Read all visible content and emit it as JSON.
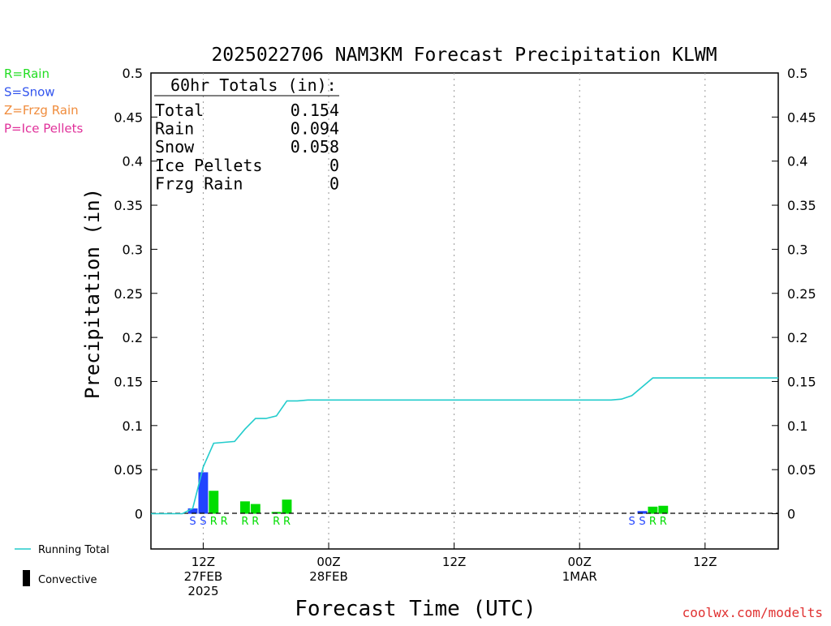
{
  "title": "2025022706 NAM3KM Forecast Precipitation KLWM",
  "legend_types": [
    {
      "label": "R=Rain",
      "color": "#22dd22"
    },
    {
      "label": "S=Snow",
      "color": "#3355ee"
    },
    {
      "label": "Z=Frzg Rain",
      "color": "#f08c3c"
    },
    {
      "label": "P=Ice Pellets",
      "color": "#e0309a"
    }
  ],
  "legend_lines": {
    "running_total": "Running Total",
    "convective": "Convective"
  },
  "totals": {
    "header": "60hr Totals (in):",
    "rows": [
      {
        "label": "Total",
        "value": "0.154"
      },
      {
        "label": "Rain",
        "value": "0.094"
      },
      {
        "label": "Snow",
        "value": "0.058"
      },
      {
        "label": "Ice Pellets",
        "value": "0"
      },
      {
        "label": "Frzg Rain",
        "value": "0"
      }
    ]
  },
  "footer": "coolwx.com/modelts",
  "chart_data": {
    "type": "bar",
    "xlabel": "Forecast Time (UTC)",
    "ylabel": "Precipitation (in)",
    "xlim": [
      1,
      61
    ],
    "ylim": [
      -0.04,
      0.5
    ],
    "y_ticks": [
      "0",
      "0.05",
      "0.1",
      "0.15",
      "0.2",
      "0.25",
      "0.3",
      "0.35",
      "0.4",
      "0.45",
      "0.5"
    ],
    "x_ticks": [
      {
        "hour": 6,
        "lines": [
          "12Z",
          "27FEB",
          "2025"
        ]
      },
      {
        "hour": 18,
        "lines": [
          "00Z",
          "28FEB"
        ]
      },
      {
        "hour": 30,
        "lines": [
          "12Z"
        ]
      },
      {
        "hour": 42,
        "lines": [
          "00Z",
          "1MAR"
        ]
      },
      {
        "hour": 54,
        "lines": [
          "12Z"
        ]
      }
    ],
    "colors": {
      "rain": "#00dd00",
      "snow": "#2244ff",
      "running_total": "#22cccc"
    },
    "bars": [
      {
        "hour": 5,
        "type": "S",
        "value": 0.006
      },
      {
        "hour": 6,
        "type": "S",
        "value": 0.047
      },
      {
        "hour": 7,
        "type": "R",
        "value": 0.026
      },
      {
        "hour": 8,
        "type": "R",
        "value": 0.0
      },
      {
        "hour": 10,
        "type": "R",
        "value": 0.014
      },
      {
        "hour": 11,
        "type": "R",
        "value": 0.011
      },
      {
        "hour": 13,
        "type": "R",
        "value": 0.002
      },
      {
        "hour": 14,
        "type": "R",
        "value": 0.016
      },
      {
        "hour": 47,
        "type": "S",
        "value": 0.0
      },
      {
        "hour": 48,
        "type": "S",
        "value": 0.003
      },
      {
        "hour": 49,
        "type": "R",
        "value": 0.008
      },
      {
        "hour": 50,
        "type": "R",
        "value": 0.009
      }
    ],
    "running_total": [
      [
        1,
        0.0
      ],
      [
        2,
        0.0
      ],
      [
        3,
        0.0
      ],
      [
        4,
        0.0
      ],
      [
        5,
        0.006
      ],
      [
        6,
        0.053
      ],
      [
        7,
        0.08
      ],
      [
        8,
        0.081
      ],
      [
        9,
        0.082
      ],
      [
        10,
        0.096
      ],
      [
        11,
        0.108
      ],
      [
        12,
        0.108
      ],
      [
        13,
        0.111
      ],
      [
        14,
        0.128
      ],
      [
        15,
        0.128
      ],
      [
        16,
        0.129
      ],
      [
        20,
        0.129
      ],
      [
        30,
        0.129
      ],
      [
        40,
        0.129
      ],
      [
        45,
        0.129
      ],
      [
        46,
        0.13
      ],
      [
        47,
        0.134
      ],
      [
        48,
        0.144
      ],
      [
        49,
        0.154
      ],
      [
        50,
        0.154
      ],
      [
        55,
        0.154
      ],
      [
        61,
        0.154
      ]
    ]
  }
}
